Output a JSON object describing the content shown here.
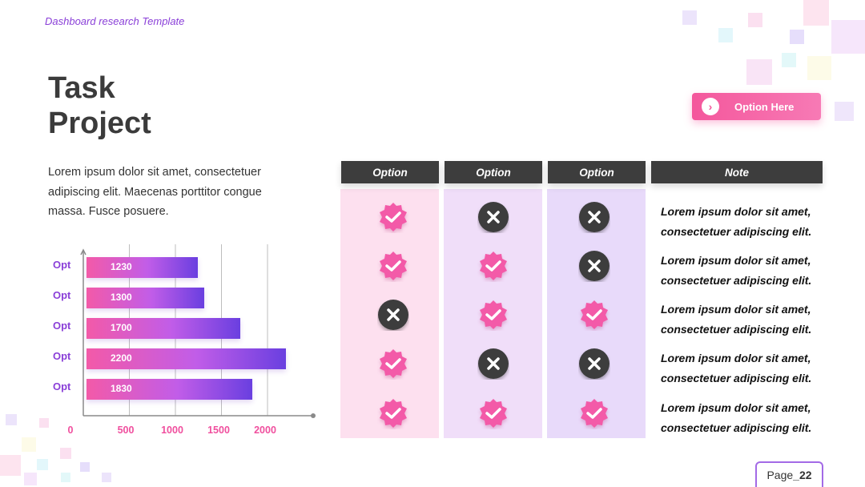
{
  "header": {
    "top_label": "Dashboard research Template"
  },
  "title": {
    "line1": "Task",
    "line2": "Project"
  },
  "description": "Lorem ipsum dolor sit amet, consectetuer adipiscing elit. Maecenas porttitor congue massa. Fusce posuere.",
  "option_button": {
    "label": "Option Here",
    "icon": "chevron-right-icon"
  },
  "chart_data": {
    "type": "bar",
    "orientation": "horizontal",
    "categories": [
      "Opt",
      "Opt",
      "Opt",
      "Opt",
      "Opt"
    ],
    "values": [
      1230,
      1300,
      1700,
      2200,
      1830
    ],
    "value_labels": [
      "1230",
      "1300",
      "1700",
      "2200",
      "1830"
    ],
    "x_ticks": [
      "0",
      "500",
      "1000",
      "1500",
      "2000"
    ],
    "xlim": [
      0,
      2500
    ],
    "grid": true,
    "colors": [
      "#f35aa8",
      "#c15de8",
      "#6a3fe0"
    ]
  },
  "table": {
    "headers": [
      "Option",
      "Option",
      "Option",
      "Note"
    ],
    "rows": [
      {
        "marks": [
          "check",
          "cross",
          "cross"
        ],
        "note_line1": "Lorem ipsum dolor sit amet,",
        "note_line2": "consectetuer adipiscing elit."
      },
      {
        "marks": [
          "check",
          "check",
          "cross"
        ],
        "note_line1": "Lorem ipsum dolor sit amet,",
        "note_line2": "consectetuer adipiscing elit."
      },
      {
        "marks": [
          "cross",
          "check",
          "check"
        ],
        "note_line1": "Lorem ipsum dolor sit amet,",
        "note_line2": "consectetuer adipiscing elit."
      },
      {
        "marks": [
          "check",
          "cross",
          "cross"
        ],
        "note_line1": "Lorem ipsum dolor sit amet,",
        "note_line2": "consectetuer adipiscing elit."
      },
      {
        "marks": [
          "check",
          "check",
          "check"
        ],
        "note_line1": "Lorem ipsum dolor sit amet,",
        "note_line2": "consectetuer adipiscing elit."
      }
    ],
    "column_colors": [
      "#fde0ef",
      "#f0def9",
      "#e8dafa"
    ],
    "check_color": "#f35aa8",
    "cross_color": "#3d3d3d"
  },
  "footer": {
    "page_prefix": "Page",
    "page_number": "_22"
  }
}
